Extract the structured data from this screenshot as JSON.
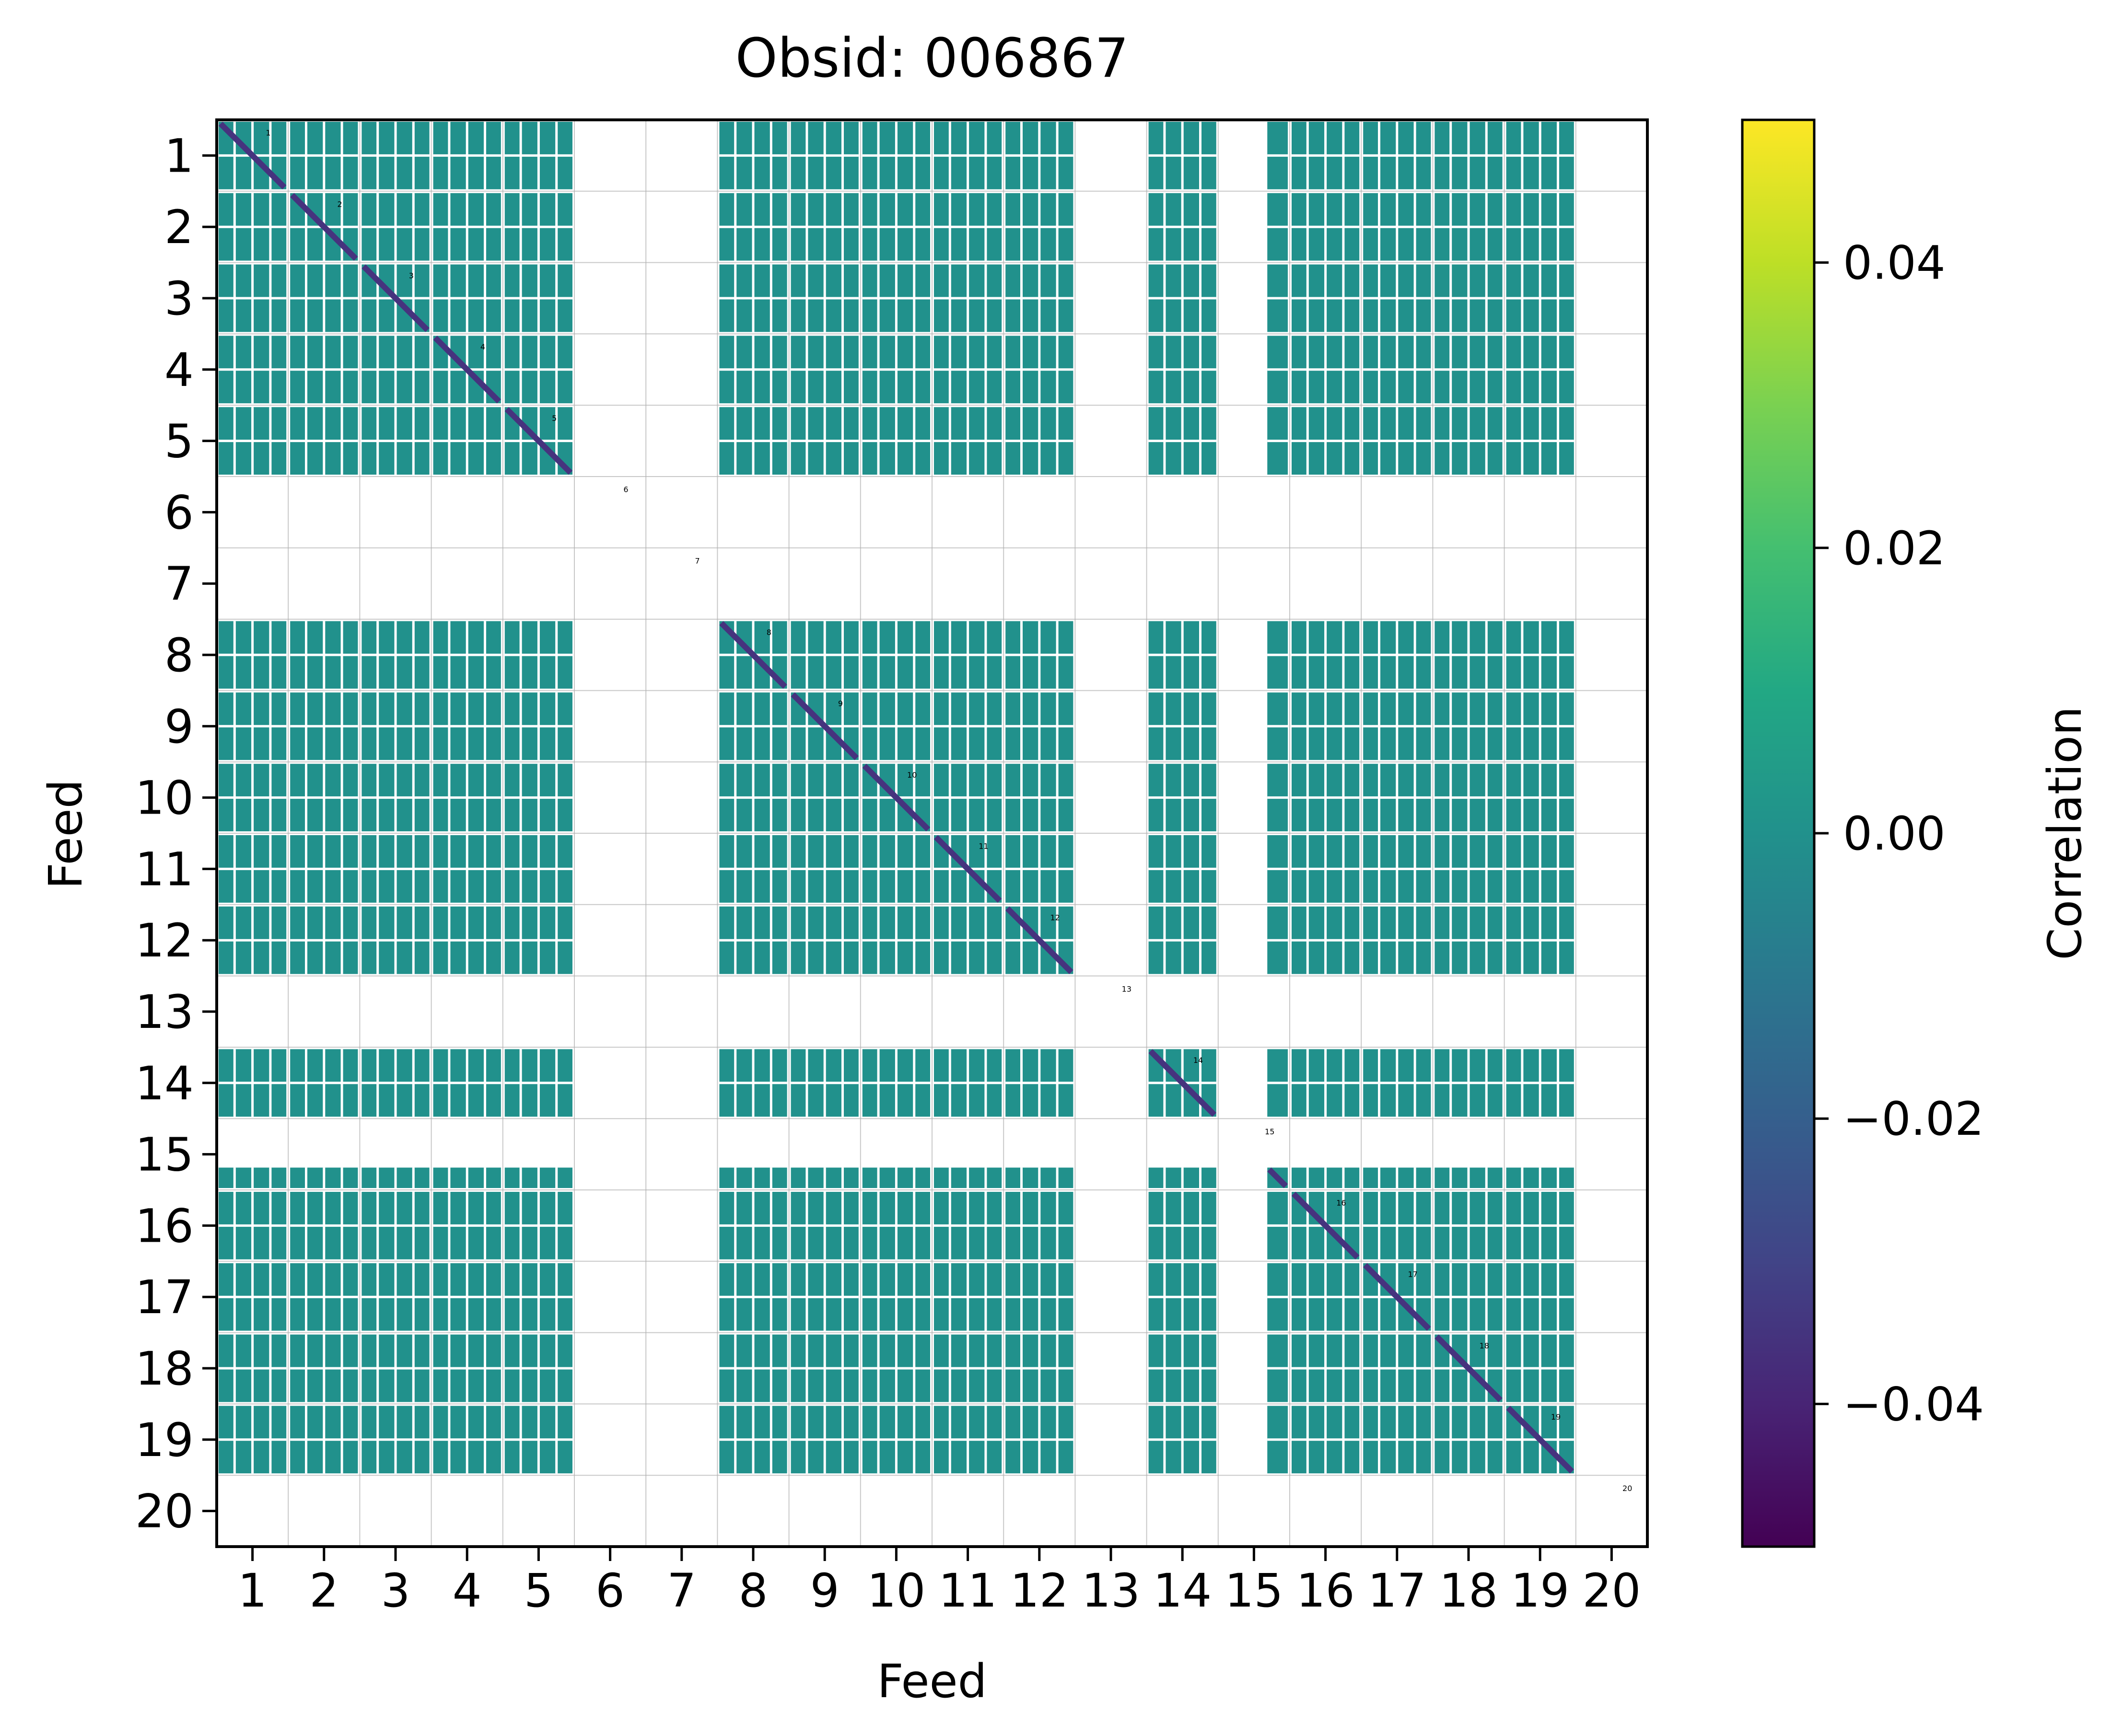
{
  "chart_data": {
    "type": "heatmap",
    "title": "Obsid: 006867",
    "xlabel": "Feed",
    "ylabel": "Feed",
    "x_ticks": [
      "1",
      "2",
      "3",
      "4",
      "5",
      "6",
      "7",
      "8",
      "9",
      "10",
      "11",
      "12",
      "13",
      "14",
      "15",
      "16",
      "17",
      "18",
      "19",
      "20"
    ],
    "y_ticks": [
      "1",
      "2",
      "3",
      "4",
      "5",
      "6",
      "7",
      "8",
      "9",
      "10",
      "11",
      "12",
      "13",
      "14",
      "15",
      "16",
      "17",
      "18",
      "19",
      "20"
    ],
    "feeds": [
      1,
      2,
      3,
      4,
      5,
      6,
      7,
      8,
      9,
      10,
      11,
      12,
      13,
      14,
      15,
      16,
      17,
      18,
      19,
      20
    ],
    "diagonal_labels": [
      "1",
      "2",
      "3",
      "4",
      "5",
      "6",
      "7",
      "8",
      "9",
      "10",
      "11",
      "12",
      "13",
      "14",
      "15",
      "16",
      "17",
      "18",
      "19",
      "20"
    ],
    "masked_feeds": [
      6,
      7,
      13,
      20
    ],
    "single_sideband_feeds": [
      15
    ],
    "fill_value": 0.0,
    "diagonal_value": -0.045,
    "colormap": "viridis",
    "colorbar": {
      "label": "Correlation",
      "range": [
        -0.05,
        0.05
      ],
      "ticks": [
        -0.04,
        -0.02,
        0.0,
        0.02,
        0.04
      ],
      "tick_labels": [
        "−0.04",
        "−0.02",
        "0.00",
        "0.02",
        "0.04"
      ]
    },
    "grid": true
  }
}
